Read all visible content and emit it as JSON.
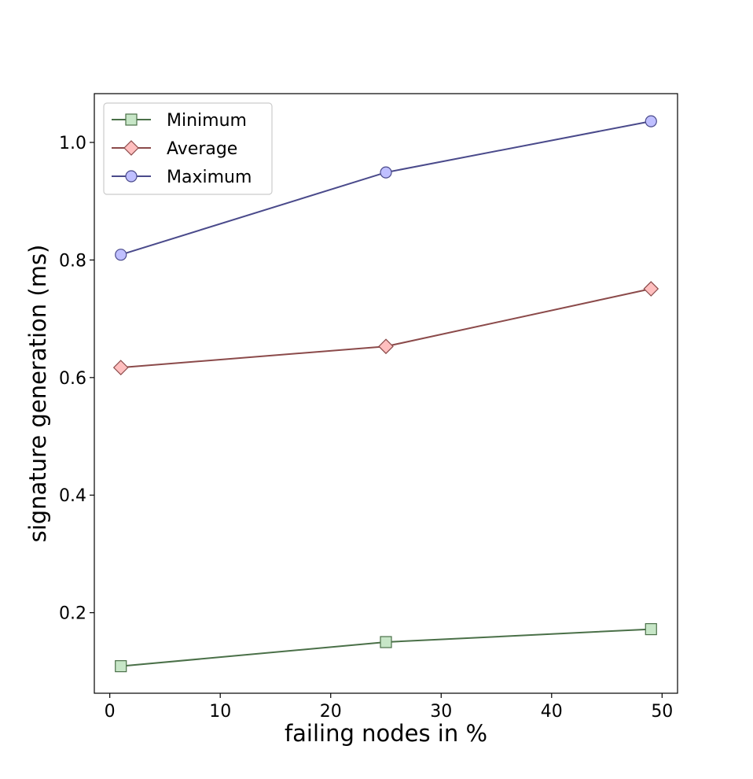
{
  "chart_data": {
    "type": "line",
    "title": "",
    "xlabel": "failing nodes in %",
    "ylabel": "signature generation (ms)",
    "x": [
      1,
      25,
      49
    ],
    "xlim": [
      -1.4,
      51.4
    ],
    "ylim": [
      0.063,
      1.083
    ],
    "xticks": [
      0,
      10,
      20,
      30,
      40,
      50
    ],
    "yticks": [
      0.2,
      0.4,
      0.6,
      0.8,
      1.0
    ],
    "xtick_labels": [
      "0",
      "10",
      "20",
      "30",
      "40",
      "50"
    ],
    "ytick_labels": [
      "0.2",
      "0.4",
      "0.6",
      "0.8",
      "1.0"
    ],
    "grid": false,
    "legend_position": "top-left",
    "series": [
      {
        "name": "Minimum",
        "values": [
          0.109,
          0.15,
          0.172
        ],
        "marker": "square",
        "line_color": "#4a7048",
        "fill_color": "#c7e6c7",
        "edge_color": "#4a7048"
      },
      {
        "name": "Average",
        "values": [
          0.617,
          0.653,
          0.751
        ],
        "marker": "diamond",
        "line_color": "#8b4a4a",
        "fill_color": "#ffbfbf",
        "edge_color": "#8b4a4a"
      },
      {
        "name": "Maximum",
        "values": [
          0.809,
          0.949,
          1.036
        ],
        "marker": "circle",
        "line_color": "#4a4a8b",
        "fill_color": "#bfbfff",
        "edge_color": "#4a4a8b"
      }
    ]
  }
}
